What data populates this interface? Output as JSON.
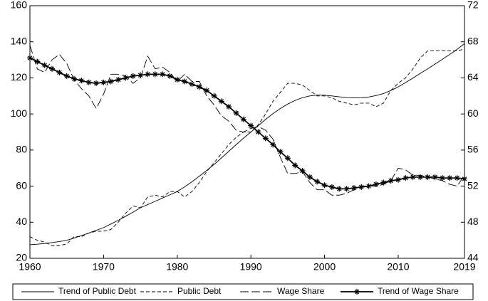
{
  "chart_data": {
    "type": "line",
    "x": [
      1960,
      1961,
      1962,
      1963,
      1964,
      1965,
      1966,
      1967,
      1968,
      1969,
      1970,
      1971,
      1972,
      1973,
      1974,
      1975,
      1976,
      1977,
      1978,
      1979,
      1980,
      1981,
      1982,
      1983,
      1984,
      1985,
      1986,
      1987,
      1988,
      1989,
      1990,
      1991,
      1992,
      1993,
      1994,
      1995,
      1996,
      1997,
      1998,
      1999,
      2000,
      2001,
      2002,
      2003,
      2004,
      2005,
      2006,
      2007,
      2008,
      2009,
      2010,
      2011,
      2012,
      2013,
      2014,
      2015,
      2016,
      2017,
      2018,
      2019
    ],
    "xlim": [
      1960,
      2019
    ],
    "xticks": [
      1960,
      1970,
      1980,
      1990,
      2000,
      2010,
      2019
    ],
    "ylim": [
      20,
      160
    ],
    "yticks": [
      20,
      40,
      60,
      80,
      100,
      120,
      140,
      160
    ],
    "y2lim": [
      44,
      72
    ],
    "y2ticks": [
      44,
      48,
      52,
      56,
      60,
      64,
      68,
      72
    ],
    "series": [
      {
        "name": "Trend of Public Debt",
        "color": "#000000",
        "values": [
          27.5,
          27.8,
          28.2,
          28.7,
          29.3,
          30,
          31.2,
          32.6,
          34,
          35.5,
          37,
          39,
          41.1,
          43.3,
          45.6,
          48,
          49.8,
          51.6,
          53.4,
          55.2,
          57,
          59.6,
          62.4,
          65.5,
          68.7,
          72,
          75.6,
          79.3,
          83,
          86.6,
          90,
          93.5,
          97,
          100.2,
          103,
          105.5,
          107.5,
          109,
          110,
          110.5,
          110.4,
          110,
          109.5,
          109.1,
          108.9,
          109,
          109.4,
          110.2,
          111.3,
          113,
          115,
          117.4,
          119.9,
          122.5,
          125,
          127.6,
          130.3,
          133,
          135.8,
          139
        ]
      },
      {
        "name": "Public Debt",
        "color": "#000000",
        "values": [
          32,
          30,
          29,
          27,
          27,
          28,
          32,
          32,
          34,
          35,
          35,
          36,
          40,
          45,
          49,
          48,
          54,
          55,
          54,
          57,
          57,
          54,
          57,
          62,
          68,
          73,
          78,
          83,
          87,
          90,
          90,
          94,
          100,
          107,
          112,
          117,
          117,
          116,
          113,
          110,
          110,
          109,
          107,
          106,
          105,
          106,
          106,
          104,
          106,
          113,
          117,
          120,
          125,
          131,
          135,
          135,
          135,
          135,
          135,
          136
        ]
      },
      {
        "name": "Wage Share",
        "color": "#000000",
        "axis": "y2",
        "values": [
          67.6,
          65,
          64.6,
          66,
          66.6,
          65.6,
          63.8,
          62.8,
          62,
          60.6,
          62.2,
          64.4,
          64.4,
          64.2,
          63.4,
          64,
          66.4,
          65,
          65.2,
          64.6,
          63.6,
          64.4,
          63.6,
          63.6,
          62,
          61,
          59.8,
          59.2,
          58.2,
          58,
          58.4,
          58.6,
          58.2,
          57.2,
          55.2,
          53.4,
          53.4,
          53.6,
          52.4,
          51.6,
          51.6,
          51,
          51,
          51.2,
          51.6,
          52,
          52,
          52,
          52.2,
          52.6,
          54,
          53.8,
          53.2,
          53.2,
          53,
          52.8,
          52.6,
          52.2,
          52,
          53.2
        ]
      },
      {
        "name": "Trend of Wage Share",
        "color": "#000000",
        "axis": "y2",
        "values": [
          66.2,
          65.8,
          65.4,
          65,
          64.6,
          64.2,
          63.9,
          63.7,
          63.5,
          63.4,
          63.5,
          63.6,
          63.8,
          64,
          64.2,
          64.3,
          64.4,
          64.4,
          64.4,
          64.2,
          63.8,
          63.6,
          63.3,
          63,
          62.6,
          62,
          61.4,
          60.8,
          60.1,
          59.4,
          58.7,
          58,
          57.3,
          56.6,
          55.8,
          55.1,
          54.3,
          53.7,
          53,
          52.5,
          52.1,
          51.9,
          51.7,
          51.7,
          51.8,
          51.9,
          52,
          52.2,
          52.4,
          52.6,
          52.7,
          52.9,
          53,
          53,
          53,
          53,
          52.9,
          52.9,
          52.9,
          52.8
        ]
      }
    ]
  }
}
